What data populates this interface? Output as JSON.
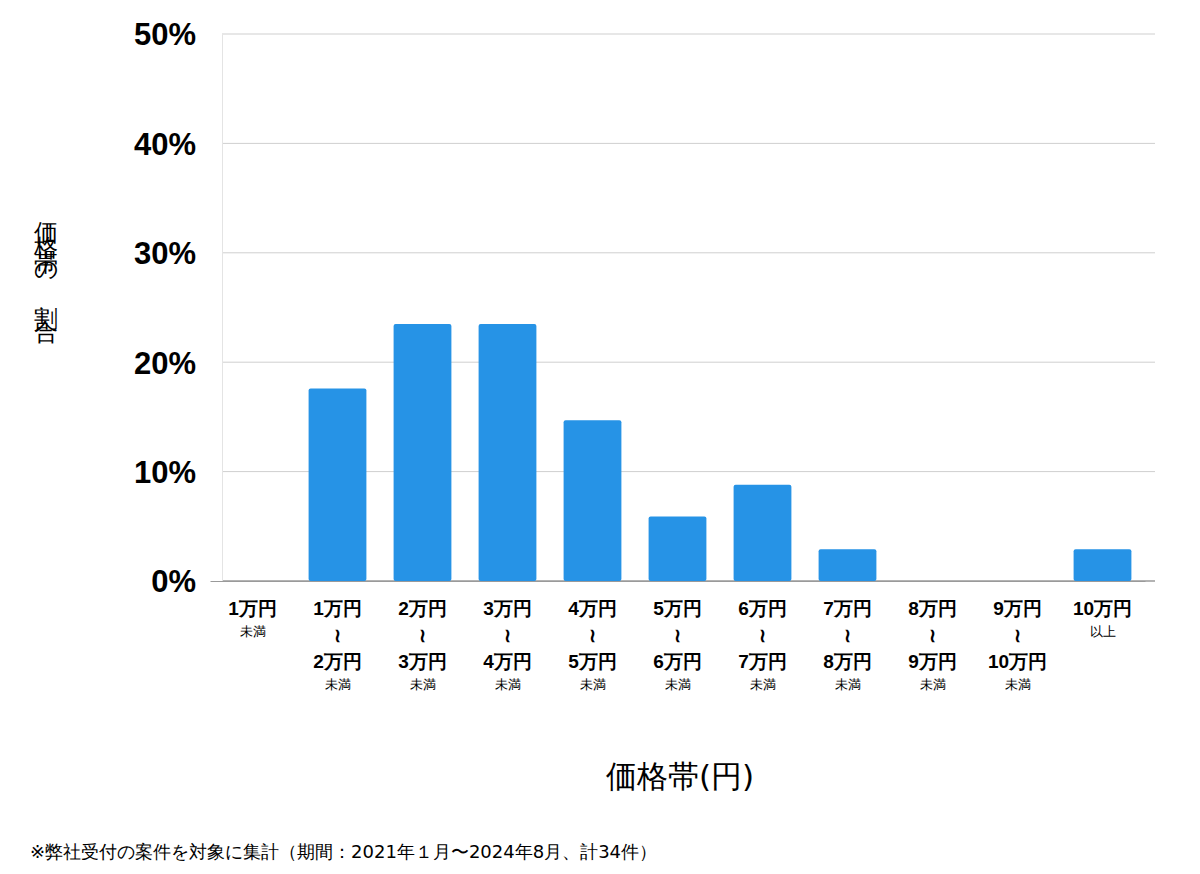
{
  "chart_data": {
    "type": "bar",
    "categories": [
      "1万円\n未満",
      "1万円\n≀\n2万円\n未満",
      "2万円\n≀\n3万円\n未満",
      "3万円\n≀\n4万円\n未満",
      "4万円\n≀\n5万円\n未満",
      "5万円\n≀\n6万円\n未満",
      "6万円\n≀\n7万円\n未満",
      "7万円\n≀\n8万円\n未満",
      "8万円\n≀\n9万円\n未満",
      "9万円\n≀\n10万円\n未満",
      "10万円\n以上"
    ],
    "values": [
      0,
      17.6,
      23.5,
      23.5,
      14.7,
      5.9,
      8.8,
      2.9,
      0,
      0,
      2.9
    ],
    "color": "#2693e6",
    "x_label": "価格帯(円)",
    "y_label": "価格帯の割合",
    "caption": "※弊社受付の案件を対象に集計（期間：2021年１月〜2024年8月、計34件）",
    "ylim": [
      0,
      50
    ],
    "yticks": [
      {
        "value": 0,
        "label": "0%"
      },
      {
        "value": 10,
        "label": "10%"
      },
      {
        "value": 20,
        "label": "20%"
      },
      {
        "value": 30,
        "label": "30%"
      },
      {
        "value": 40,
        "label": "40%"
      },
      {
        "value": 50,
        "label": "50%"
      }
    ],
    "grid": true
  }
}
